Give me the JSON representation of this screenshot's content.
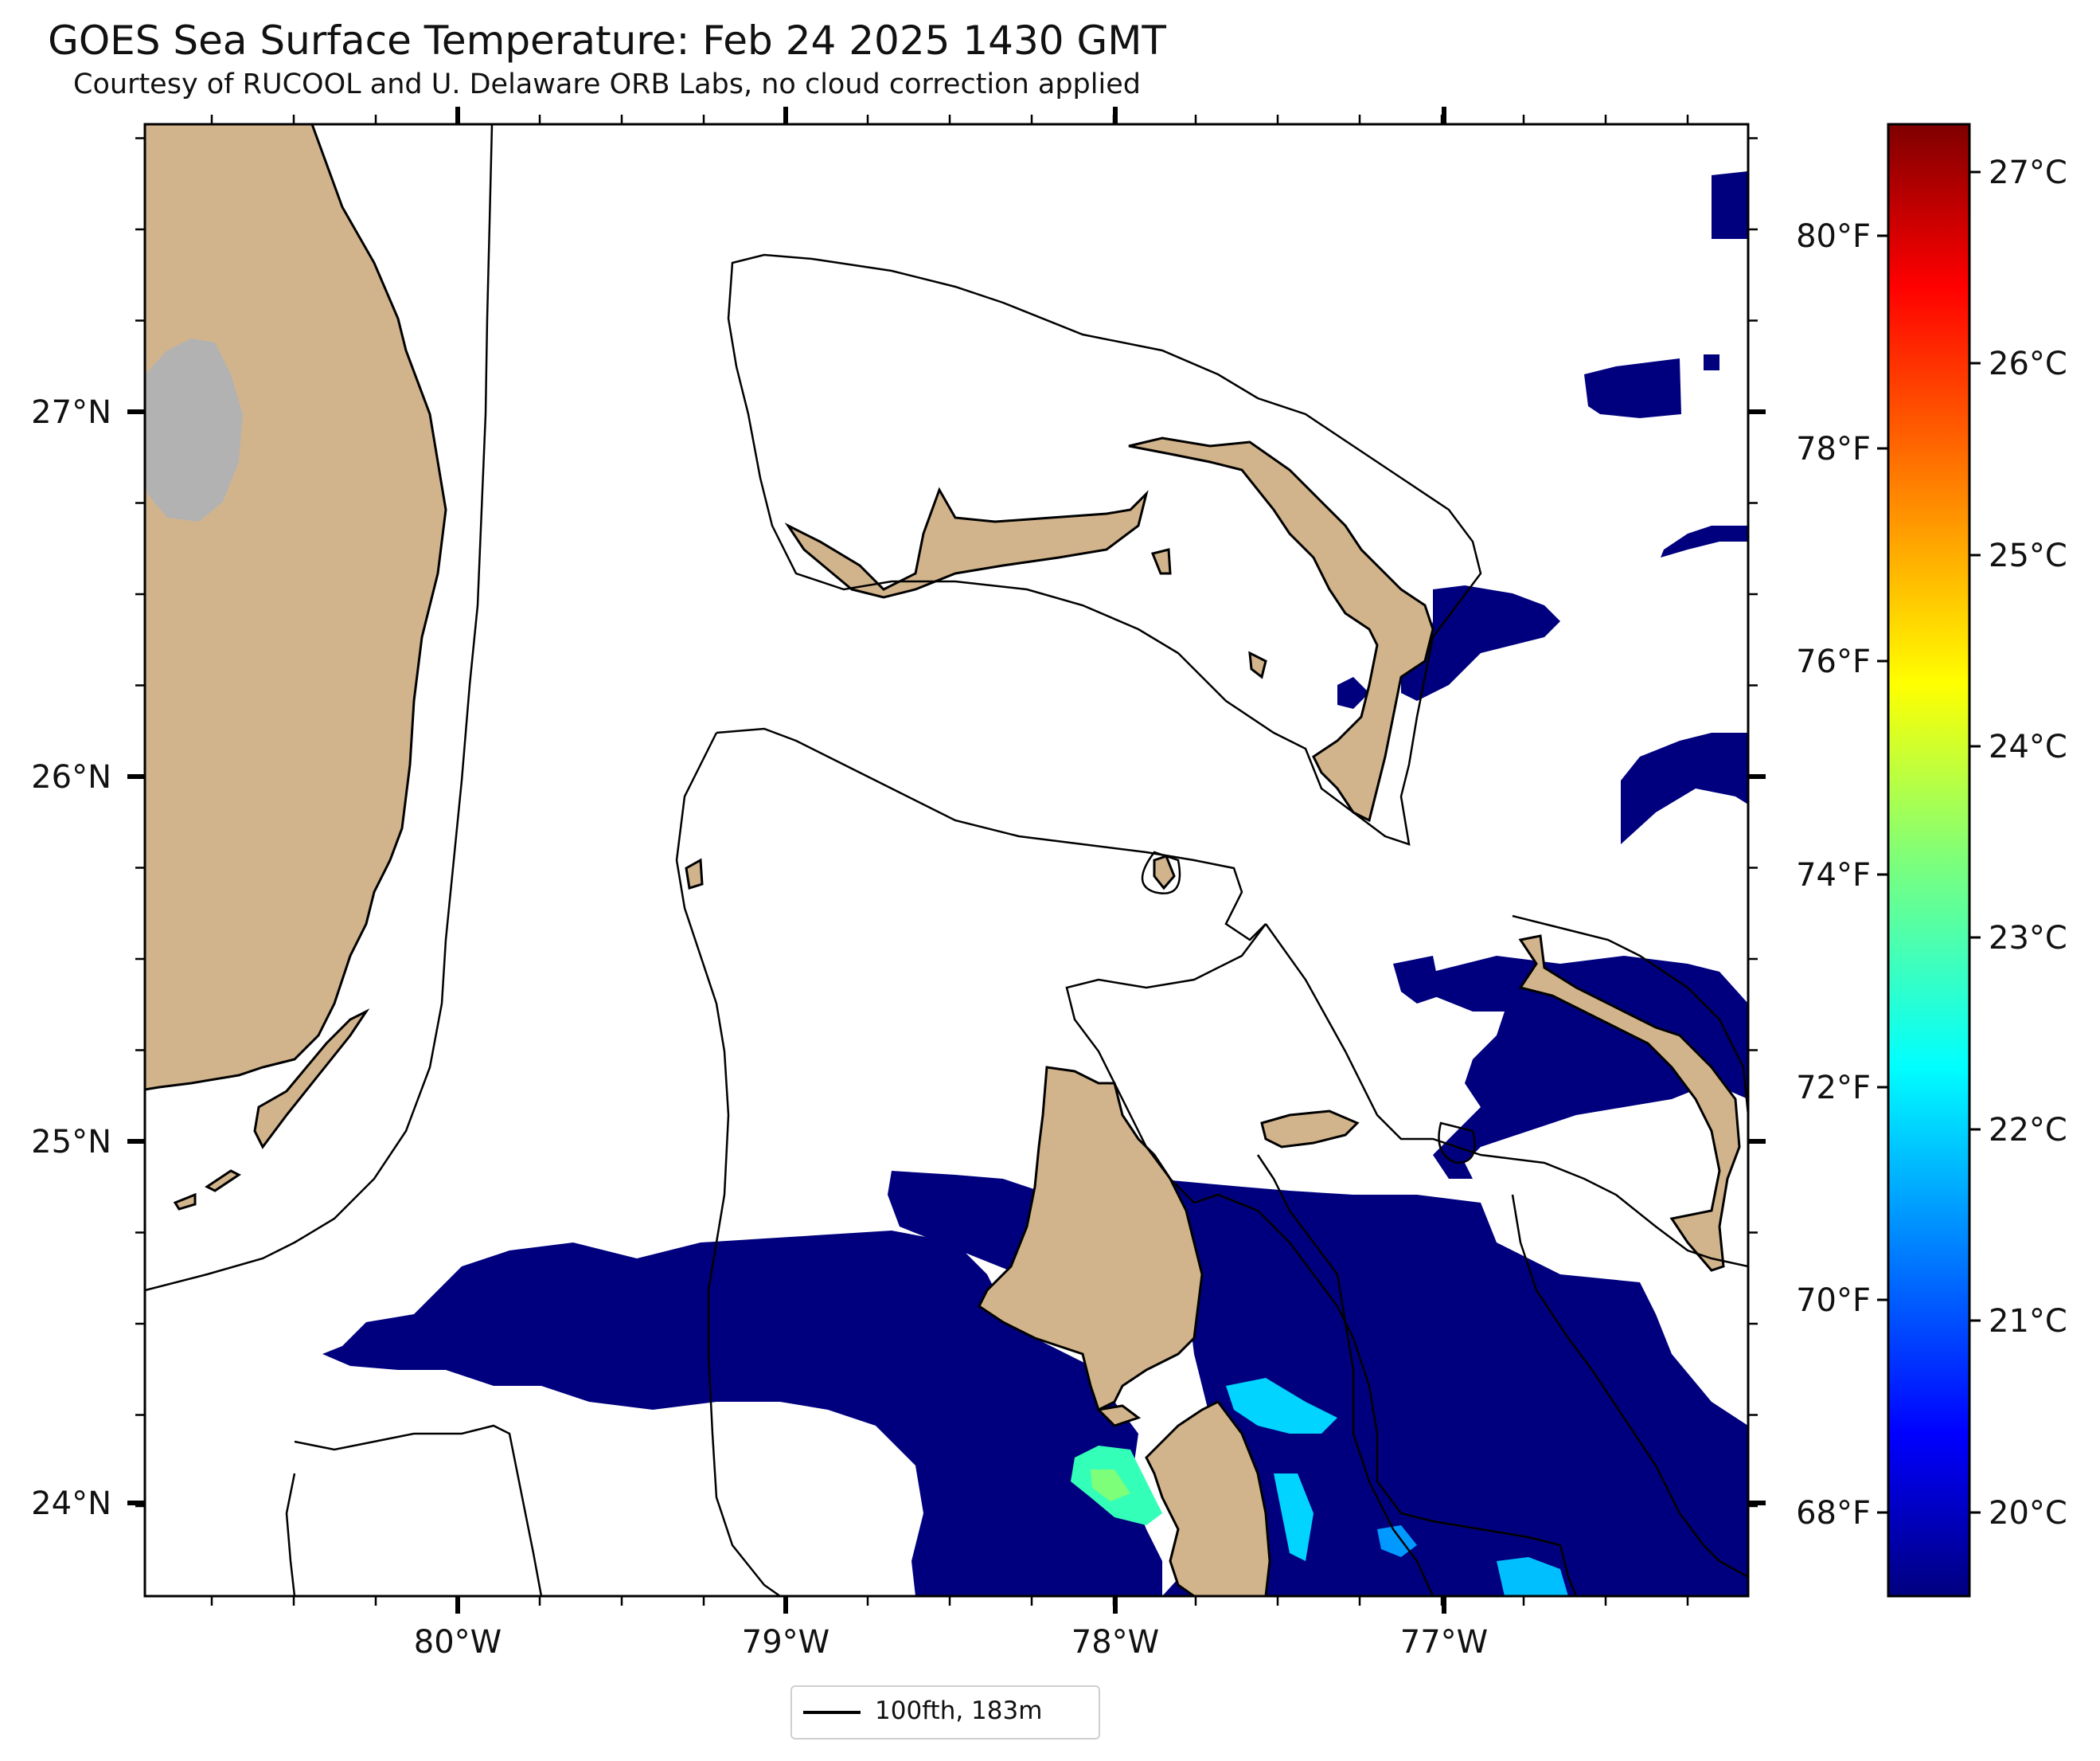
{
  "map": {
    "title": "GOES Sea Surface Temperature: Feb 24 2025 1430 GMT",
    "subtitle": "Courtesy of RUCOOL and U. Delaware ORB Labs, no cloud correction applied",
    "lon_labels": [
      "80°W",
      "79°W",
      "78°W",
      "77°W"
    ],
    "lat_labels": [
      "27°N",
      "26°N",
      "25°N",
      "24°N"
    ],
    "legend_label": "100fth, 183m",
    "colors": {
      "land": "#d2b48c",
      "lake": "#b2b2b2",
      "cold_water": "#00007f",
      "cool_water": "#33ffb8",
      "background": "#ffffff"
    }
  },
  "colorbar": {
    "f_labels": [
      "80°F",
      "78°F",
      "76°F",
      "74°F",
      "72°F",
      "70°F",
      "68°F"
    ],
    "c_labels": [
      "27°C",
      "26°C",
      "25°C",
      "24°C",
      "23°C",
      "22°C",
      "21°C",
      "20°C"
    ],
    "colormap": "jet"
  }
}
